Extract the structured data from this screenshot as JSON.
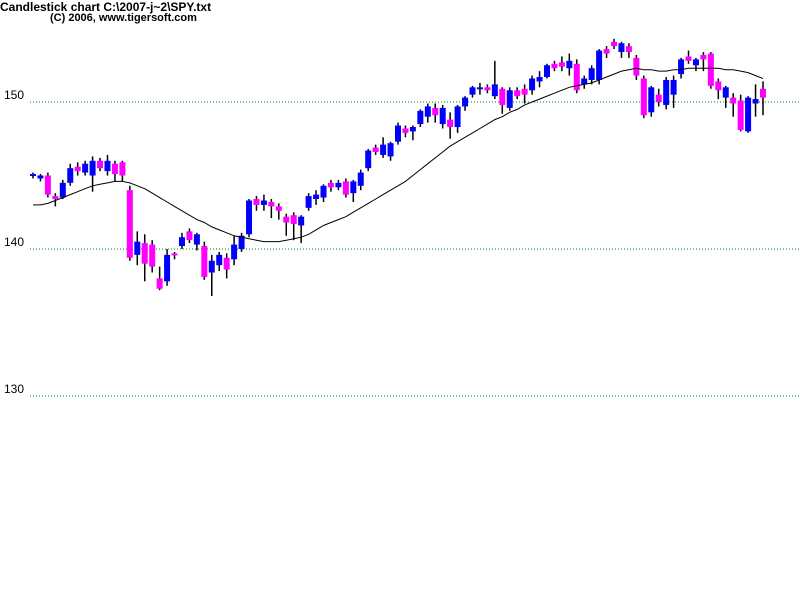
{
  "chart_data": {
    "type": "candlestick",
    "title": "Candlestick chart C:\\2007-j~2\\SPY.txt",
    "subtitle": "(C) 2006, www.tigersoft.com",
    "ylim": [
      116.12,
      156.94
    ],
    "yticks": [
      130,
      140,
      150
    ],
    "grid": true,
    "grid_color": "#008000",
    "up_color": "#0000ff",
    "down_color": "#ff00ff",
    "ma_color": "#000000",
    "open": [
      145.0,
      144.8,
      145.0,
      143.6,
      143.5,
      144.5,
      145.6,
      145.2,
      145.0,
      146.0,
      145.3,
      145.8,
      145.9,
      144.0,
      139.6,
      140.4,
      140.3,
      138.0,
      137.8,
      139.7,
      140.2,
      141.2,
      140.3,
      140.2,
      138.4,
      138.9,
      139.4,
      139.3,
      140.0,
      141.0,
      143.4,
      143.0,
      143.2,
      142.9,
      142.2,
      142.3,
      141.6,
      142.8,
      143.4,
      143.5,
      144.5,
      144.2,
      144.6,
      143.8,
      144.3,
      145.5,
      146.9,
      146.4,
      146.3,
      147.3,
      148.2,
      148.0,
      148.5,
      149.0,
      149.6,
      148.5,
      148.8,
      148.3,
      149.7,
      150.5,
      150.9,
      151.0,
      150.4,
      150.9,
      149.6,
      150.8,
      150.9,
      150.8,
      151.4,
      151.7,
      152.6,
      152.7,
      152.3,
      152.6,
      151.2,
      151.5,
      151.5,
      153.6,
      154.1,
      153.4,
      153.8,
      153.0,
      151.6,
      149.3,
      150.5,
      149.8,
      150.5,
      151.9,
      153.1,
      152.5,
      153.2,
      153.3,
      151.4,
      150.3,
      150.3,
      150.1,
      148.0,
      149.9,
      150.9
    ],
    "high": [
      145.2,
      145.1,
      145.2,
      143.8,
      144.7,
      145.8,
      145.9,
      146.0,
      146.3,
      146.2,
      146.4,
      146.0,
      146.0,
      144.3,
      141.2,
      141.0,
      140.6,
      138.8,
      140.0,
      139.8,
      141.1,
      141.4,
      141.1,
      140.5,
      139.6,
      139.8,
      139.7,
      140.9,
      141.1,
      143.4,
      143.6,
      143.7,
      143.4,
      143.1,
      142.4,
      142.5,
      142.3,
      143.8,
      144.0,
      144.4,
      144.7,
      144.7,
      144.8,
      144.7,
      145.4,
      146.8,
      147.1,
      147.6,
      147.3,
      148.6,
      148.4,
      148.4,
      149.5,
      149.9,
      149.9,
      149.8,
      149.3,
      149.8,
      150.4,
      151.1,
      151.3,
      151.2,
      152.8,
      151.0,
      151.0,
      151.0,
      151.2,
      151.8,
      152.1,
      152.6,
      152.8,
      153.1,
      153.3,
      152.9,
      151.8,
      152.5,
      153.6,
      153.8,
      154.3,
      154.1,
      154.0,
      153.2,
      151.8,
      151.1,
      150.9,
      151.7,
      151.8,
      153.0,
      153.5,
      153.0,
      153.4,
      153.4,
      151.6,
      151.1,
      150.6,
      150.5,
      150.4,
      151.2,
      151.4
    ],
    "low": [
      144.8,
      144.6,
      143.5,
      142.9,
      143.4,
      144.3,
      145.0,
      145.0,
      143.9,
      145.3,
      145.0,
      144.6,
      144.6,
      139.2,
      138.9,
      137.8,
      138.4,
      137.2,
      137.5,
      139.3,
      140.0,
      140.4,
      139.9,
      137.9,
      136.8,
      138.5,
      138.0,
      138.9,
      139.8,
      140.8,
      142.6,
      142.6,
      142.1,
      142.0,
      140.9,
      140.6,
      140.4,
      142.6,
      143.0,
      143.2,
      143.9,
      144.0,
      143.5,
      143.2,
      144.0,
      145.3,
      146.4,
      146.2,
      146.0,
      147.1,
      147.6,
      147.4,
      148.3,
      148.6,
      148.6,
      148.2,
      147.5,
      147.9,
      149.4,
      150.3,
      150.5,
      150.6,
      150.2,
      149.2,
      149.4,
      150.2,
      149.9,
      150.5,
      151.0,
      151.6,
      152.1,
      152.1,
      151.8,
      150.6,
      150.9,
      151.2,
      151.2,
      153.0,
      153.6,
      153.0,
      153.0,
      151.5,
      148.9,
      149.0,
      149.7,
      149.5,
      149.6,
      151.6,
      152.6,
      152.1,
      152.1,
      150.9,
      150.2,
      149.6,
      149.0,
      148.0,
      147.9,
      149.0,
      149.1
    ],
    "close": [
      145.1,
      145.0,
      143.7,
      143.4,
      144.5,
      145.5,
      145.3,
      145.8,
      146.0,
      145.5,
      146.0,
      145.1,
      145.0,
      139.4,
      140.5,
      139.0,
      138.8,
      137.3,
      139.6,
      139.6,
      140.8,
      140.6,
      141.0,
      138.1,
      139.2,
      139.6,
      138.6,
      140.3,
      140.9,
      143.3,
      143.0,
      143.3,
      142.9,
      142.6,
      141.8,
      141.7,
      142.2,
      143.6,
      143.7,
      144.3,
      144.2,
      144.5,
      143.7,
      144.6,
      145.2,
      146.7,
      146.6,
      147.1,
      147.2,
      148.4,
      147.9,
      148.3,
      149.4,
      149.7,
      149.1,
      149.6,
      148.3,
      149.7,
      150.3,
      151.0,
      151.0,
      150.8,
      151.2,
      149.8,
      150.8,
      150.4,
      150.5,
      151.6,
      151.7,
      152.5,
      152.3,
      152.4,
      152.8,
      150.8,
      151.6,
      152.3,
      153.5,
      153.3,
      153.8,
      154.0,
      153.4,
      151.8,
      149.1,
      151.0,
      150.0,
      151.5,
      151.5,
      152.9,
      152.8,
      152.9,
      152.9,
      151.1,
      150.8,
      151.0,
      149.9,
      148.1,
      150.3,
      150.2,
      150.3
    ],
    "moving_average": [
      143.0,
      143.0,
      143.1,
      143.3,
      143.5,
      143.7,
      143.9,
      144.1,
      144.3,
      144.4,
      144.5,
      144.6,
      144.6,
      144.5,
      144.3,
      144.1,
      143.8,
      143.5,
      143.2,
      142.9,
      142.6,
      142.3,
      142.0,
      141.8,
      141.5,
      141.3,
      141.1,
      140.9,
      140.8,
      140.7,
      140.6,
      140.5,
      140.5,
      140.5,
      140.6,
      140.7,
      140.8,
      141.0,
      141.3,
      141.6,
      141.8,
      142.0,
      142.2,
      142.5,
      142.8,
      143.1,
      143.4,
      143.7,
      144.0,
      144.3,
      144.6,
      145.0,
      145.4,
      145.8,
      146.2,
      146.6,
      147.0,
      147.3,
      147.6,
      147.9,
      148.2,
      148.5,
      148.8,
      149.0,
      149.3,
      149.5,
      149.8,
      150.0,
      150.2,
      150.4,
      150.6,
      150.8,
      151.0,
      151.1,
      151.2,
      151.3,
      151.5,
      151.7,
      151.9,
      152.1,
      152.2,
      152.3,
      152.2,
      152.2,
      152.1,
      152.1,
      152.2,
      152.2,
      152.3,
      152.3,
      152.3,
      152.3,
      152.3,
      152.2,
      152.2,
      152.1,
      152.0,
      151.8,
      151.6
    ]
  }
}
